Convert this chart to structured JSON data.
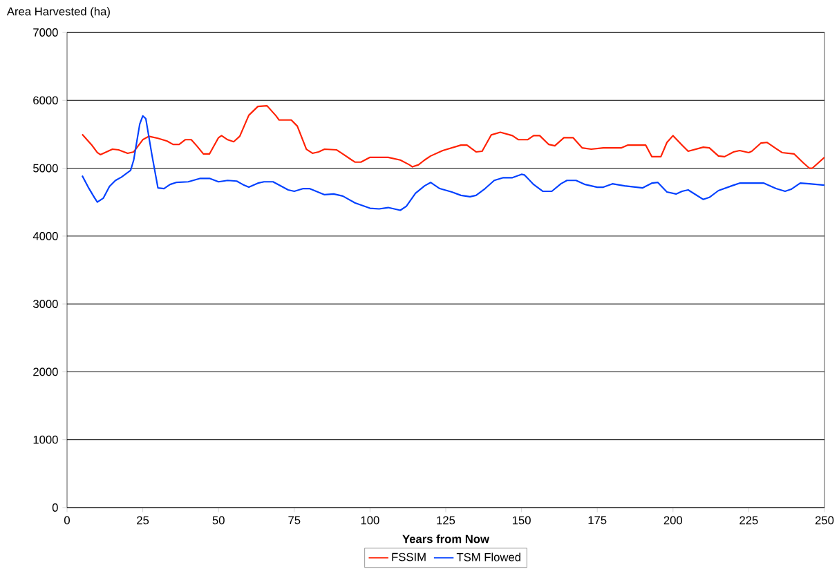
{
  "chart_data": {
    "type": "line",
    "xlabel": "Years from Now",
    "ylabel": "Area Harvested (ha)",
    "xlim": [
      0,
      250
    ],
    "xticks": [
      0,
      25,
      50,
      75,
      100,
      125,
      150,
      175,
      200,
      225,
      250
    ],
    "ylim": [
      0,
      7000
    ],
    "yticks": [
      0,
      1000,
      2000,
      3000,
      4000,
      5000,
      6000,
      7000
    ],
    "grid": "y",
    "legend": "bottom",
    "marker": "none",
    "line_style": "solid",
    "series": [
      {
        "name": "FSSIM",
        "color": "#ff2000",
        "x": [
          5,
          8,
          10,
          11,
          15,
          17,
          20,
          22,
          25,
          27,
          30,
          33,
          35,
          37,
          39,
          41,
          43,
          45,
          47,
          50,
          51,
          53,
          55,
          57,
          60,
          63,
          66,
          69,
          70,
          74,
          76,
          79,
          81,
          83,
          85,
          89,
          91,
          95,
          97,
          100,
          106,
          110,
          113,
          114,
          116,
          118,
          120,
          124,
          130,
          132,
          135,
          137,
          140,
          143,
          147,
          149,
          152,
          154,
          156,
          159,
          161,
          164,
          167,
          170,
          173,
          177,
          183,
          185,
          191,
          193,
          196,
          198,
          200,
          203,
          205,
          210,
          212,
          215,
          217,
          220,
          222,
          225,
          226,
          229,
          231,
          234,
          236,
          240,
          243,
          245,
          246,
          250
        ],
        "values": [
          5500,
          5350,
          5230,
          5200,
          5280,
          5270,
          5220,
          5240,
          5420,
          5470,
          5440,
          5400,
          5350,
          5350,
          5420,
          5420,
          5320,
          5210,
          5210,
          5450,
          5480,
          5420,
          5390,
          5470,
          5780,
          5910,
          5920,
          5770,
          5710,
          5710,
          5620,
          5280,
          5220,
          5240,
          5280,
          5270,
          5210,
          5090,
          5090,
          5160,
          5160,
          5120,
          5050,
          5020,
          5050,
          5120,
          5180,
          5260,
          5340,
          5340,
          5240,
          5250,
          5490,
          5530,
          5480,
          5420,
          5420,
          5480,
          5480,
          5350,
          5330,
          5450,
          5450,
          5300,
          5280,
          5300,
          5300,
          5340,
          5340,
          5170,
          5170,
          5380,
          5480,
          5340,
          5250,
          5310,
          5300,
          5180,
          5170,
          5240,
          5260,
          5230,
          5250,
          5370,
          5380,
          5290,
          5230,
          5210,
          5080,
          5000,
          5000,
          5160
        ]
      },
      {
        "name": "TSM Flowed",
        "color": "#0040ff",
        "x": [
          5,
          7,
          9,
          10,
          12,
          14,
          16,
          18,
          21,
          22,
          24,
          25,
          26,
          28,
          30,
          32,
          34,
          36,
          40,
          44,
          47,
          50,
          53,
          56,
          58,
          60,
          63,
          65,
          68,
          73,
          75,
          78,
          80,
          85,
          88,
          91,
          95,
          100,
          103,
          106,
          108,
          110,
          112,
          115,
          118,
          120,
          123,
          127,
          130,
          133,
          135,
          138,
          141,
          144,
          147,
          150,
          151,
          154,
          157,
          160,
          163,
          165,
          168,
          171,
          175,
          177,
          180,
          184,
          190,
          193,
          195,
          198,
          201,
          203,
          205,
          210,
          212,
          215,
          220,
          222,
          230,
          234,
          237,
          239,
          242,
          245,
          250
        ],
        "values": [
          4890,
          4720,
          4570,
          4500,
          4560,
          4730,
          4820,
          4870,
          4970,
          5120,
          5650,
          5770,
          5730,
          5200,
          4710,
          4700,
          4760,
          4790,
          4800,
          4850,
          4850,
          4800,
          4820,
          4810,
          4760,
          4720,
          4780,
          4800,
          4800,
          4680,
          4660,
          4700,
          4700,
          4610,
          4620,
          4590,
          4490,
          4410,
          4400,
          4420,
          4400,
          4380,
          4440,
          4630,
          4740,
          4790,
          4700,
          4650,
          4600,
          4580,
          4600,
          4700,
          4820,
          4860,
          4860,
          4910,
          4900,
          4760,
          4660,
          4660,
          4770,
          4820,
          4820,
          4760,
          4720,
          4720,
          4770,
          4740,
          4710,
          4780,
          4790,
          4650,
          4620,
          4660,
          4680,
          4540,
          4570,
          4670,
          4750,
          4780,
          4780,
          4700,
          4660,
          4690,
          4780,
          4770,
          4750
        ]
      }
    ]
  }
}
